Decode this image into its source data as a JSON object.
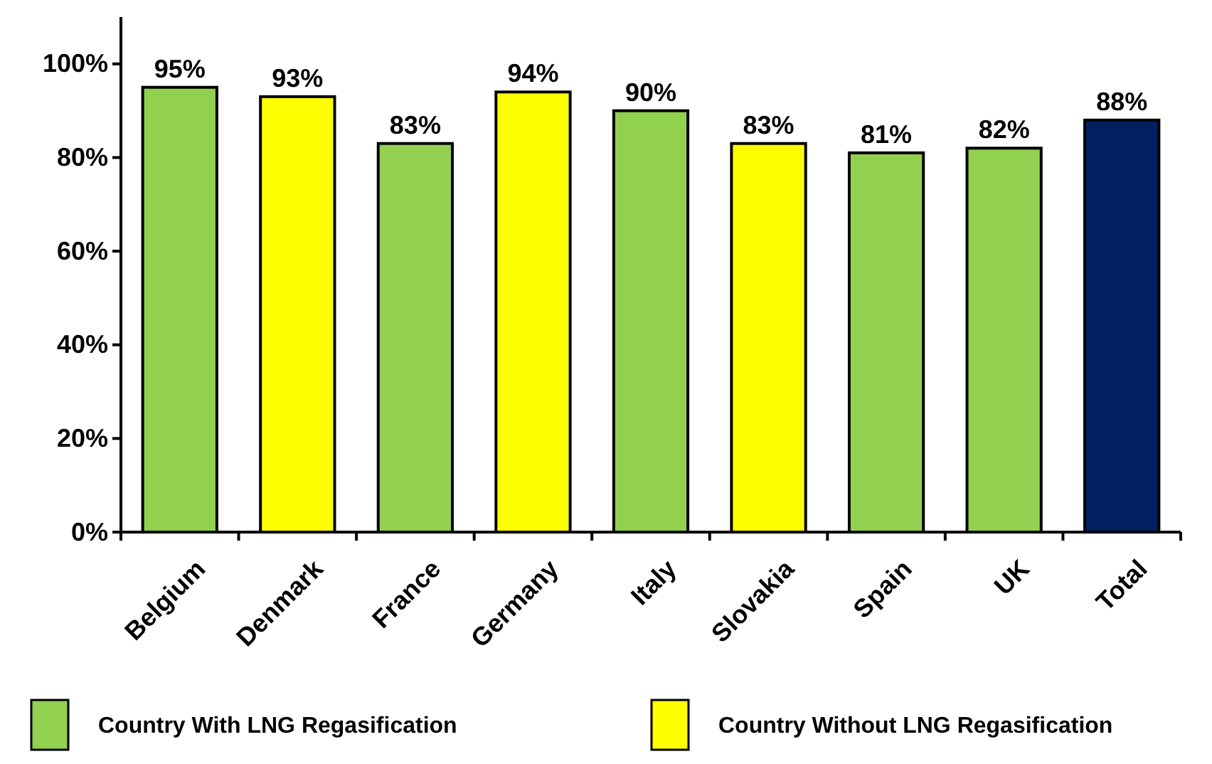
{
  "chart_data": {
    "type": "bar",
    "categories": [
      "Belgium",
      "Denmark",
      "France",
      "Germany",
      "Italy",
      "Slovakia",
      "Spain",
      "UK",
      "Total"
    ],
    "series": [
      {
        "name": "Country With LNG Regasification",
        "color": "#92d050",
        "values": [
          95,
          null,
          83,
          null,
          90,
          null,
          81,
          82,
          null
        ],
        "value_labels": [
          "95%",
          null,
          "83%",
          null,
          "90%",
          null,
          "81%",
          "82%",
          null
        ]
      },
      {
        "name": "Country Without LNG Regasification",
        "color": "#ffff00",
        "values": [
          null,
          93,
          null,
          94,
          null,
          83,
          null,
          null,
          null
        ],
        "value_labels": [
          null,
          "93%",
          null,
          "94%",
          null,
          "83%",
          null,
          null,
          null
        ]
      },
      {
        "color": "#002060",
        "values": [
          null,
          null,
          null,
          null,
          null,
          null,
          null,
          null,
          88
        ],
        "value_labels": [
          null,
          null,
          null,
          null,
          null,
          null,
          null,
          null,
          "88%"
        ]
      }
    ],
    "ylim": [
      0,
      110
    ],
    "yticks": [
      {
        "value": 0,
        "label": "0%"
      },
      {
        "value": 20,
        "label": "20%"
      },
      {
        "value": 40,
        "label": "40%"
      },
      {
        "value": 60,
        "label": "60%"
      },
      {
        "value": 80,
        "label": "80%"
      },
      {
        "value": 100,
        "label": "100%"
      }
    ],
    "grid": false,
    "legend": "bottom"
  }
}
